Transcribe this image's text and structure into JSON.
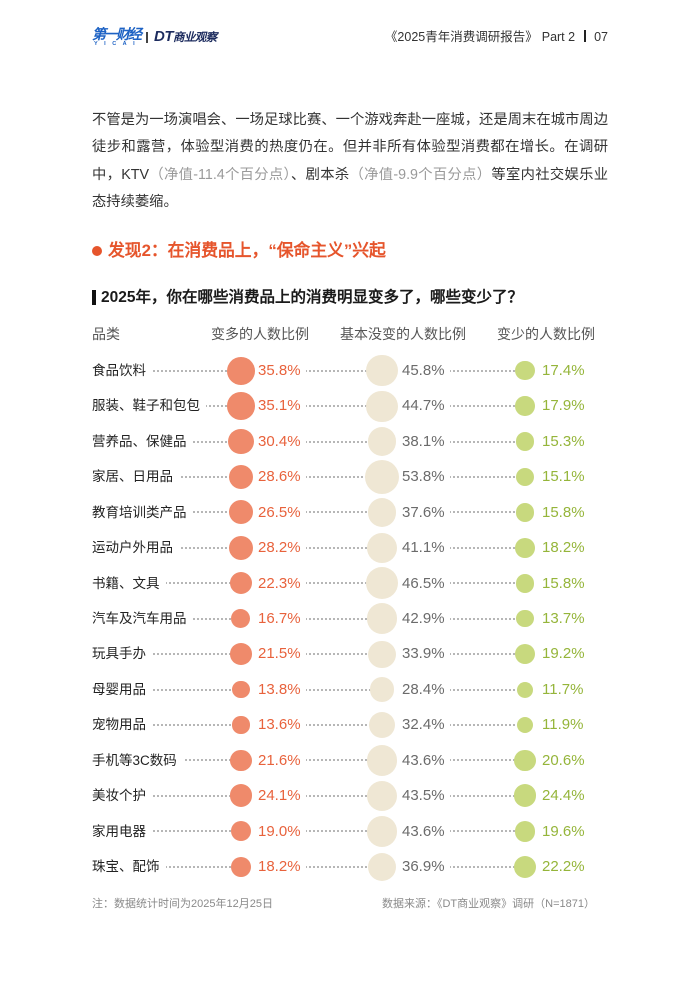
{
  "colors": {
    "accent": "#e6552c",
    "brand_blue": "#1d62c4",
    "brand_navy": "#1c2b5e"
  },
  "header": {
    "logo_yicai": "第一财经",
    "logo_yicai_en": "YICAI",
    "logo_dt_mark": "DT",
    "logo_dt_text": "商业观察",
    "report_title": "《2025青年消费调研报告》",
    "part": "Part 2",
    "page_number": "07"
  },
  "intro": {
    "text_1": "不管是为一场演唱会、一场足球比赛、一个游戏奔赴一座城，还是周末在城市周边徒步和露营，体验型消费的热度仍在。但并非所有体验型消费都在增长。在调研中，KTV",
    "ktv_note": "（净值-11.4个百分点）",
    "text_2": "、剧本杀",
    "jubensha_note": "（净值-9.9个百分点）",
    "text_3": "等室内社交娱乐业态持续萎缩。"
  },
  "section": {
    "heading": "发现2：在消费品上，“保命主义”兴起"
  },
  "chart_data": {
    "type": "table",
    "title": "2025年，你在哪些消费品上的消费明显变多了，哪些变少了？",
    "category_header": "品类",
    "categories": [
      "食品饮料",
      "服装、鞋子和包包",
      "营养品、保健品",
      "家居、日用品",
      "教育培训类产品",
      "运动户外用品",
      "书籍、文具",
      "汽车及汽车用品",
      "玩具手办",
      "母婴用品",
      "宠物用品",
      "手机等3C数码",
      "美妆个护",
      "家用电器",
      "珠宝、配饰"
    ],
    "series": [
      {
        "name": "变多的人数比例",
        "values": [
          35.8,
          35.1,
          30.4,
          28.6,
          26.5,
          28.2,
          22.3,
          16.7,
          21.5,
          13.8,
          13.6,
          21.6,
          24.1,
          19.0,
          18.2
        ],
        "labels": [
          "35.8%",
          "35.1%",
          "30.4%",
          "28.6%",
          "26.5%",
          "28.2%",
          "22.3%",
          "16.7%",
          "21.5%",
          "13.8%",
          "13.6%",
          "21.6%",
          "24.1%",
          "19.0%",
          "18.2%"
        ],
        "bubble_color": "#ef8a6b",
        "text_color": "#e8623c"
      },
      {
        "name": "基本没变的人数比例",
        "values": [
          45.8,
          44.7,
          38.1,
          53.8,
          37.6,
          41.1,
          46.5,
          42.9,
          33.9,
          28.4,
          32.4,
          43.6,
          43.5,
          43.6,
          36.9
        ],
        "labels": [
          "45.8%",
          "44.7%",
          "38.1%",
          "53.8%",
          "37.6%",
          "41.1%",
          "46.5%",
          "42.9%",
          "33.9%",
          "28.4%",
          "32.4%",
          "43.6%",
          "43.5%",
          "43.6%",
          "36.9%"
        ],
        "bubble_color": "#efe7d4",
        "text_color": "#6b6b6b"
      },
      {
        "name": "变少的人数比例",
        "values": [
          17.4,
          17.9,
          15.3,
          15.1,
          15.8,
          18.2,
          15.8,
          13.7,
          19.2,
          11.7,
          11.9,
          20.6,
          24.4,
          19.6,
          22.2
        ],
        "labels": [
          "17.4%",
          "17.9%",
          "15.3%",
          "15.1%",
          "15.8%",
          "18.2%",
          "15.8%",
          "13.7%",
          "19.2%",
          "11.7%",
          "11.9%",
          "20.6%",
          "24.4%",
          "19.6%",
          "22.2%"
        ],
        "bubble_color": "#c8d97e",
        "text_color": "#95b53a"
      }
    ],
    "note": "注：数据统计时间为2025年12月25日",
    "source": "数据来源：《DT商业观察》调研（N=1871）"
  }
}
